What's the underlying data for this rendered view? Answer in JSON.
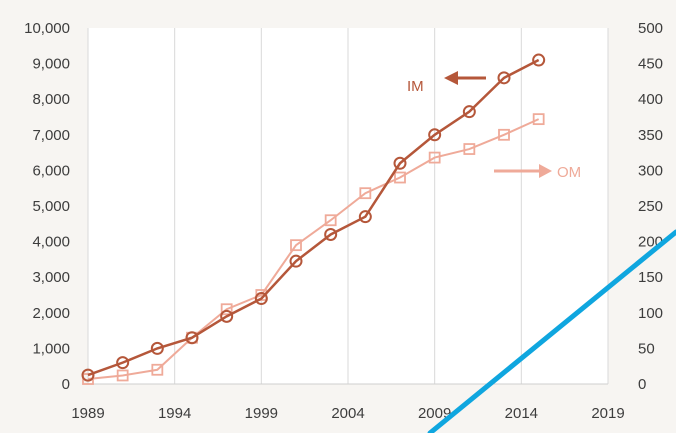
{
  "chart_data": {
    "type": "line",
    "x": [
      1989,
      1991,
      1993,
      1995,
      1997,
      1999,
      2001,
      2003,
      2005,
      2007,
      2009,
      2011,
      2013,
      2015
    ],
    "xlim": [
      1989,
      2019
    ],
    "x_ticks": [
      "1989",
      "1994",
      "1999",
      "2004",
      "2009",
      "2014",
      "2019"
    ],
    "y_left_ticks": [
      "0",
      "1,000",
      "2,000",
      "3,000",
      "4,000",
      "5,000",
      "6,000",
      "7,000",
      "8,000",
      "9,000",
      "10,000"
    ],
    "y_right_ticks": [
      "0",
      "50",
      "100",
      "150",
      "200",
      "250",
      "300",
      "350",
      "400",
      "450",
      "500"
    ],
    "ylim_left": [
      0,
      10000
    ],
    "ylim_right": [
      0,
      500
    ],
    "grid": "vertical",
    "series": [
      {
        "name": "IM",
        "axis": "left",
        "marker": "circle",
        "color": "#b5573a",
        "values": [
          250,
          600,
          1000,
          1300,
          1900,
          2400,
          3450,
          4200,
          4700,
          6200,
          7000,
          7650,
          8600,
          9100
        ]
      },
      {
        "name": "OM",
        "axis": "right",
        "marker": "square",
        "color": "#efaa99",
        "values": [
          7,
          12,
          20,
          65,
          105,
          125,
          195,
          230,
          268,
          290,
          318,
          330,
          350,
          372
        ]
      }
    ],
    "annotations": [
      {
        "text": "IM",
        "arrow": "left"
      },
      {
        "text": "OM",
        "arrow": "right"
      }
    ]
  }
}
